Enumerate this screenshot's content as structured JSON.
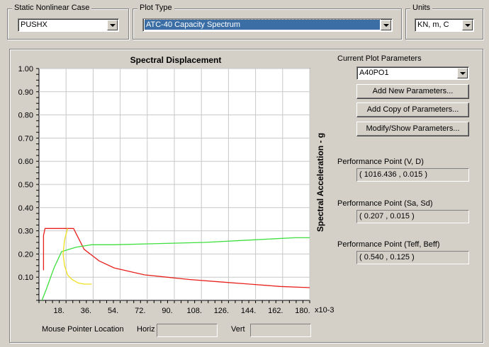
{
  "static_case": {
    "label": "Static Nonlinear Case",
    "value": "PUSHX"
  },
  "plot_type": {
    "label": "Plot Type",
    "value": "ATC-40 Capacity Spectrum"
  },
  "units": {
    "label": "Units",
    "value": "KN, m, C"
  },
  "params": {
    "current_label": "Current Plot Parameters",
    "current_value": "A40PO1",
    "add_new": "Add New Parameters...",
    "add_copy": "Add Copy of Parameters...",
    "modify_show": "Modify/Show Parameters...",
    "pp_vd_label": "Performance Point (V, D)",
    "pp_vd_value": "( 1016.436 , 0.015 )",
    "pp_sasd_label": "Performance Point (Sa, Sd)",
    "pp_sasd_value": "( 0.207 , 0.015 )",
    "pp_teff_label": "Performance Point (Teff, Beff)",
    "pp_teff_value": "( 0.540 , 0.125 )"
  },
  "pointer": {
    "label": "Mouse Pointer Location",
    "horiz_label": "Horiz",
    "horiz_value": "",
    "vert_label": "Vert",
    "vert_value": ""
  },
  "colors": {
    "demand": "#e8201c",
    "capacity": "#3ce03c",
    "period": "#f0e020",
    "grid": "#c8c8c8"
  },
  "chart_data": {
    "type": "line",
    "title": "Spectral Displacement",
    "ylabel": "Spectral Acceleration - g",
    "x_multiplier_label": "x10-3",
    "xlim": [
      0,
      180
    ],
    "ylim": [
      0,
      1.0
    ],
    "x_ticks": [
      "18.",
      "36.",
      "54.",
      "72.",
      "90.",
      "108.",
      "126.",
      "144.",
      "162.",
      "180."
    ],
    "x_tick_values": [
      18,
      36,
      54,
      72,
      90,
      108,
      126,
      144,
      162,
      180
    ],
    "y_ticks": [
      "1.00",
      "0.90",
      "0.80",
      "0.70",
      "0.60",
      "0.50",
      "0.40",
      "0.30",
      "0.20",
      "0.10"
    ],
    "y_tick_values": [
      1.0,
      0.9,
      0.8,
      0.7,
      0.6,
      0.5,
      0.4,
      0.3,
      0.2,
      0.1
    ],
    "grid": true,
    "series": [
      {
        "key": "demand",
        "x": [
          3,
          3,
          4,
          23,
          30,
          40,
          50,
          60,
          70,
          85,
          100,
          120,
          140,
          160,
          180
        ],
        "y": [
          0.13,
          0.28,
          0.31,
          0.31,
          0.22,
          0.17,
          0.14,
          0.125,
          0.11,
          0.1,
          0.09,
          0.08,
          0.07,
          0.06,
          0.055
        ]
      },
      {
        "key": "capacity",
        "x": [
          2,
          5,
          10,
          15,
          20,
          25,
          35,
          50,
          80,
          110,
          140,
          170,
          180
        ],
        "y": [
          0.0,
          0.05,
          0.14,
          0.21,
          0.22,
          0.23,
          0.24,
          0.24,
          0.245,
          0.25,
          0.26,
          0.27,
          0.27
        ]
      },
      {
        "key": "period",
        "x": [
          19,
          17,
          16,
          17,
          19,
          22,
          26,
          30,
          35
        ],
        "y": [
          0.31,
          0.26,
          0.2,
          0.15,
          0.11,
          0.09,
          0.075,
          0.07,
          0.07
        ]
      }
    ]
  }
}
